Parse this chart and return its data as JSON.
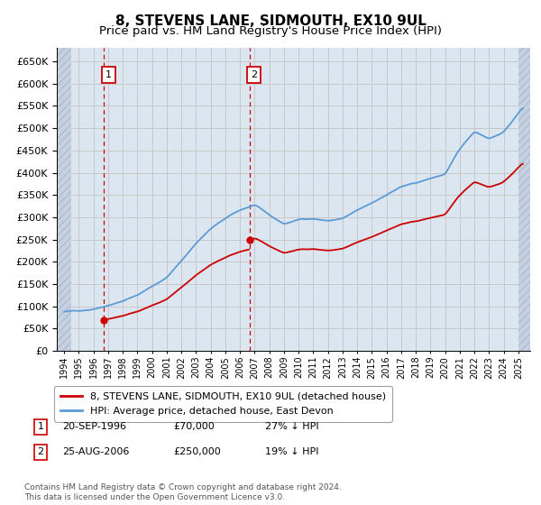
{
  "title": "8, STEVENS LANE, SIDMOUTH, EX10 9UL",
  "subtitle": "Price paid vs. HM Land Registry's House Price Index (HPI)",
  "ylim": [
    0,
    680000
  ],
  "yticks": [
    0,
    50000,
    100000,
    150000,
    200000,
    250000,
    300000,
    350000,
    400000,
    450000,
    500000,
    550000,
    600000,
    650000
  ],
  "xlim_start": 1993.5,
  "xlim_end": 2025.8,
  "sale1_date": 1996.72,
  "sale1_price": 70000,
  "sale2_date": 2006.65,
  "sale2_price": 250000,
  "hpi_line_color": "#5b9bd5",
  "price_line_color": "#cc0000",
  "sale_marker_color": "#cc0000",
  "vline_color": "#cc0000",
  "grid_color": "#c8c8c8",
  "bg_color": "#dce6f1",
  "plot_bg_color": "#dce6f1",
  "legend_label1": "8, STEVENS LANE, SIDMOUTH, EX10 9UL (detached house)",
  "legend_label2": "HPI: Average price, detached house, East Devon",
  "annotation1_label": "1",
  "annotation2_label": "2",
  "ann1_date_text": "20-SEP-1996",
  "ann1_price_text": "£70,000",
  "ann1_hpi_text": "27% ↓ HPI",
  "ann2_date_text": "25-AUG-2006",
  "ann2_price_text": "£250,000",
  "ann2_hpi_text": "19% ↓ HPI",
  "footer": "Contains HM Land Registry data © Crown copyright and database right 2024.\nThis data is licensed under the Open Government Licence v3.0.",
  "title_fontsize": 11,
  "subtitle_fontsize": 9.5,
  "hpi_keypoints_x": [
    1994.0,
    1995.0,
    1996.0,
    1997.0,
    1998.0,
    1999.0,
    2000.0,
    2001.0,
    2002.0,
    2003.0,
    2004.0,
    2005.0,
    2006.0,
    2007.0,
    2008.0,
    2009.0,
    2010.0,
    2011.0,
    2012.0,
    2013.0,
    2014.0,
    2015.0,
    2016.0,
    2017.0,
    2018.0,
    2019.0,
    2020.0,
    2021.0,
    2022.0,
    2023.0,
    2024.0,
    2025.3
  ],
  "hpi_keypoints_y": [
    88000,
    90000,
    95000,
    105000,
    115000,
    128000,
    148000,
    168000,
    205000,
    245000,
    278000,
    300000,
    318000,
    330000,
    305000,
    285000,
    295000,
    298000,
    293000,
    298000,
    315000,
    330000,
    350000,
    368000,
    375000,
    385000,
    395000,
    450000,
    490000,
    475000,
    490000,
    545000
  ]
}
